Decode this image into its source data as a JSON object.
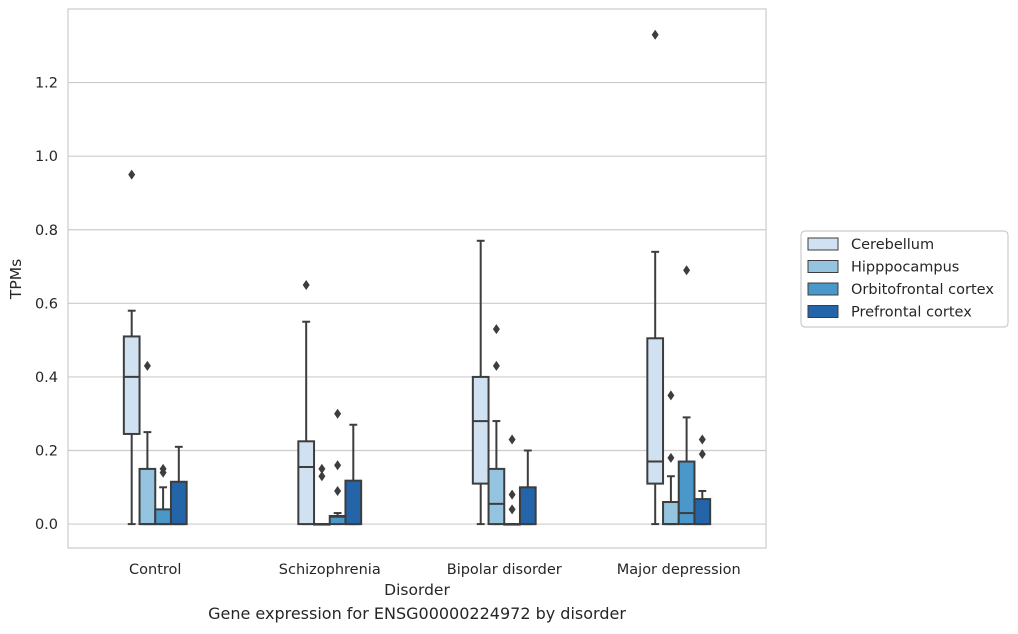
{
  "caption": "Gene expression for ENSG00000224972 by disorder",
  "chart_data": {
    "type": "box",
    "xlabel": "Disorder",
    "ylabel": "TPMs",
    "ylim": [
      -0.065,
      1.4
    ],
    "yticks": [
      0.0,
      0.2,
      0.4,
      0.6,
      0.8,
      1.0,
      1.2
    ],
    "ytick_labels": [
      "0.0",
      "0.2",
      "0.4",
      "0.6",
      "0.8",
      "1.0",
      "1.2"
    ],
    "grid": true,
    "legend_position": "right",
    "categories": [
      "Control",
      "Schizophrenia",
      "Bipolar disorder",
      "Major depression"
    ],
    "series": [
      {
        "name": "Cerebellum",
        "color": "#d0e1f2",
        "boxes": [
          {
            "q1": 0.245,
            "median": 0.4,
            "q3": 0.51,
            "whisker_low": 0.0,
            "whisker_high": 0.58,
            "outliers": [
              0.95
            ]
          },
          {
            "q1": 0.0,
            "median": 0.155,
            "q3": 0.225,
            "whisker_low": 0.0,
            "whisker_high": 0.55,
            "outliers": [
              0.65
            ]
          },
          {
            "q1": 0.11,
            "median": 0.28,
            "q3": 0.4,
            "whisker_low": 0.0,
            "whisker_high": 0.77,
            "outliers": []
          },
          {
            "q1": 0.11,
            "median": 0.17,
            "q3": 0.505,
            "whisker_low": 0.0,
            "whisker_high": 0.74,
            "outliers": [
              1.33
            ]
          }
        ]
      },
      {
        "name": "Hipppocampus",
        "color": "#94c4df",
        "boxes": [
          {
            "q1": 0.0,
            "median": 0.0,
            "q3": 0.15,
            "whisker_low": 0.0,
            "whisker_high": 0.25,
            "outliers": [
              0.43
            ]
          },
          {
            "q1": 0.0,
            "median": 0.0,
            "q3": 0.0,
            "whisker_low": 0.0,
            "whisker_high": 0.0,
            "outliers": [
              0.13,
              0.15
            ]
          },
          {
            "q1": 0.0,
            "median": 0.055,
            "q3": 0.15,
            "whisker_low": 0.0,
            "whisker_high": 0.28,
            "outliers": [
              0.43,
              0.53
            ]
          },
          {
            "q1": 0.0,
            "median": 0.0,
            "q3": 0.06,
            "whisker_low": 0.0,
            "whisker_high": 0.13,
            "outliers": [
              0.18,
              0.35
            ]
          }
        ]
      },
      {
        "name": "Orbitofrontal cortex",
        "color": "#4a98c9",
        "boxes": [
          {
            "q1": 0.0,
            "median": 0.0,
            "q3": 0.04,
            "whisker_low": 0.0,
            "whisker_high": 0.1,
            "outliers": [
              0.14,
              0.15
            ]
          },
          {
            "q1": 0.0,
            "median": 0.02,
            "q3": 0.022,
            "whisker_low": 0.0,
            "whisker_high": 0.03,
            "outliers": [
              0.09,
              0.16,
              0.3
            ]
          },
          {
            "q1": 0.0,
            "median": 0.0,
            "q3": 0.0,
            "whisker_low": 0.0,
            "whisker_high": 0.0,
            "outliers": [
              0.04,
              0.08,
              0.23
            ]
          },
          {
            "q1": 0.0,
            "median": 0.03,
            "q3": 0.17,
            "whisker_low": 0.0,
            "whisker_high": 0.29,
            "outliers": [
              0.69
            ]
          }
        ]
      },
      {
        "name": "Prefrontal cortex",
        "color": "#2365a8",
        "boxes": [
          {
            "q1": 0.0,
            "median": 0.0,
            "q3": 0.115,
            "whisker_low": 0.0,
            "whisker_high": 0.21,
            "outliers": []
          },
          {
            "q1": 0.0,
            "median": 0.0,
            "q3": 0.118,
            "whisker_low": 0.0,
            "whisker_high": 0.27,
            "outliers": []
          },
          {
            "q1": 0.0,
            "median": 0.0,
            "q3": 0.1,
            "whisker_low": 0.0,
            "whisker_high": 0.2,
            "outliers": []
          },
          {
            "q1": 0.0,
            "median": 0.0,
            "q3": 0.068,
            "whisker_low": 0.0,
            "whisker_high": 0.09,
            "outliers": [
              0.19,
              0.23
            ]
          }
        ]
      }
    ]
  }
}
